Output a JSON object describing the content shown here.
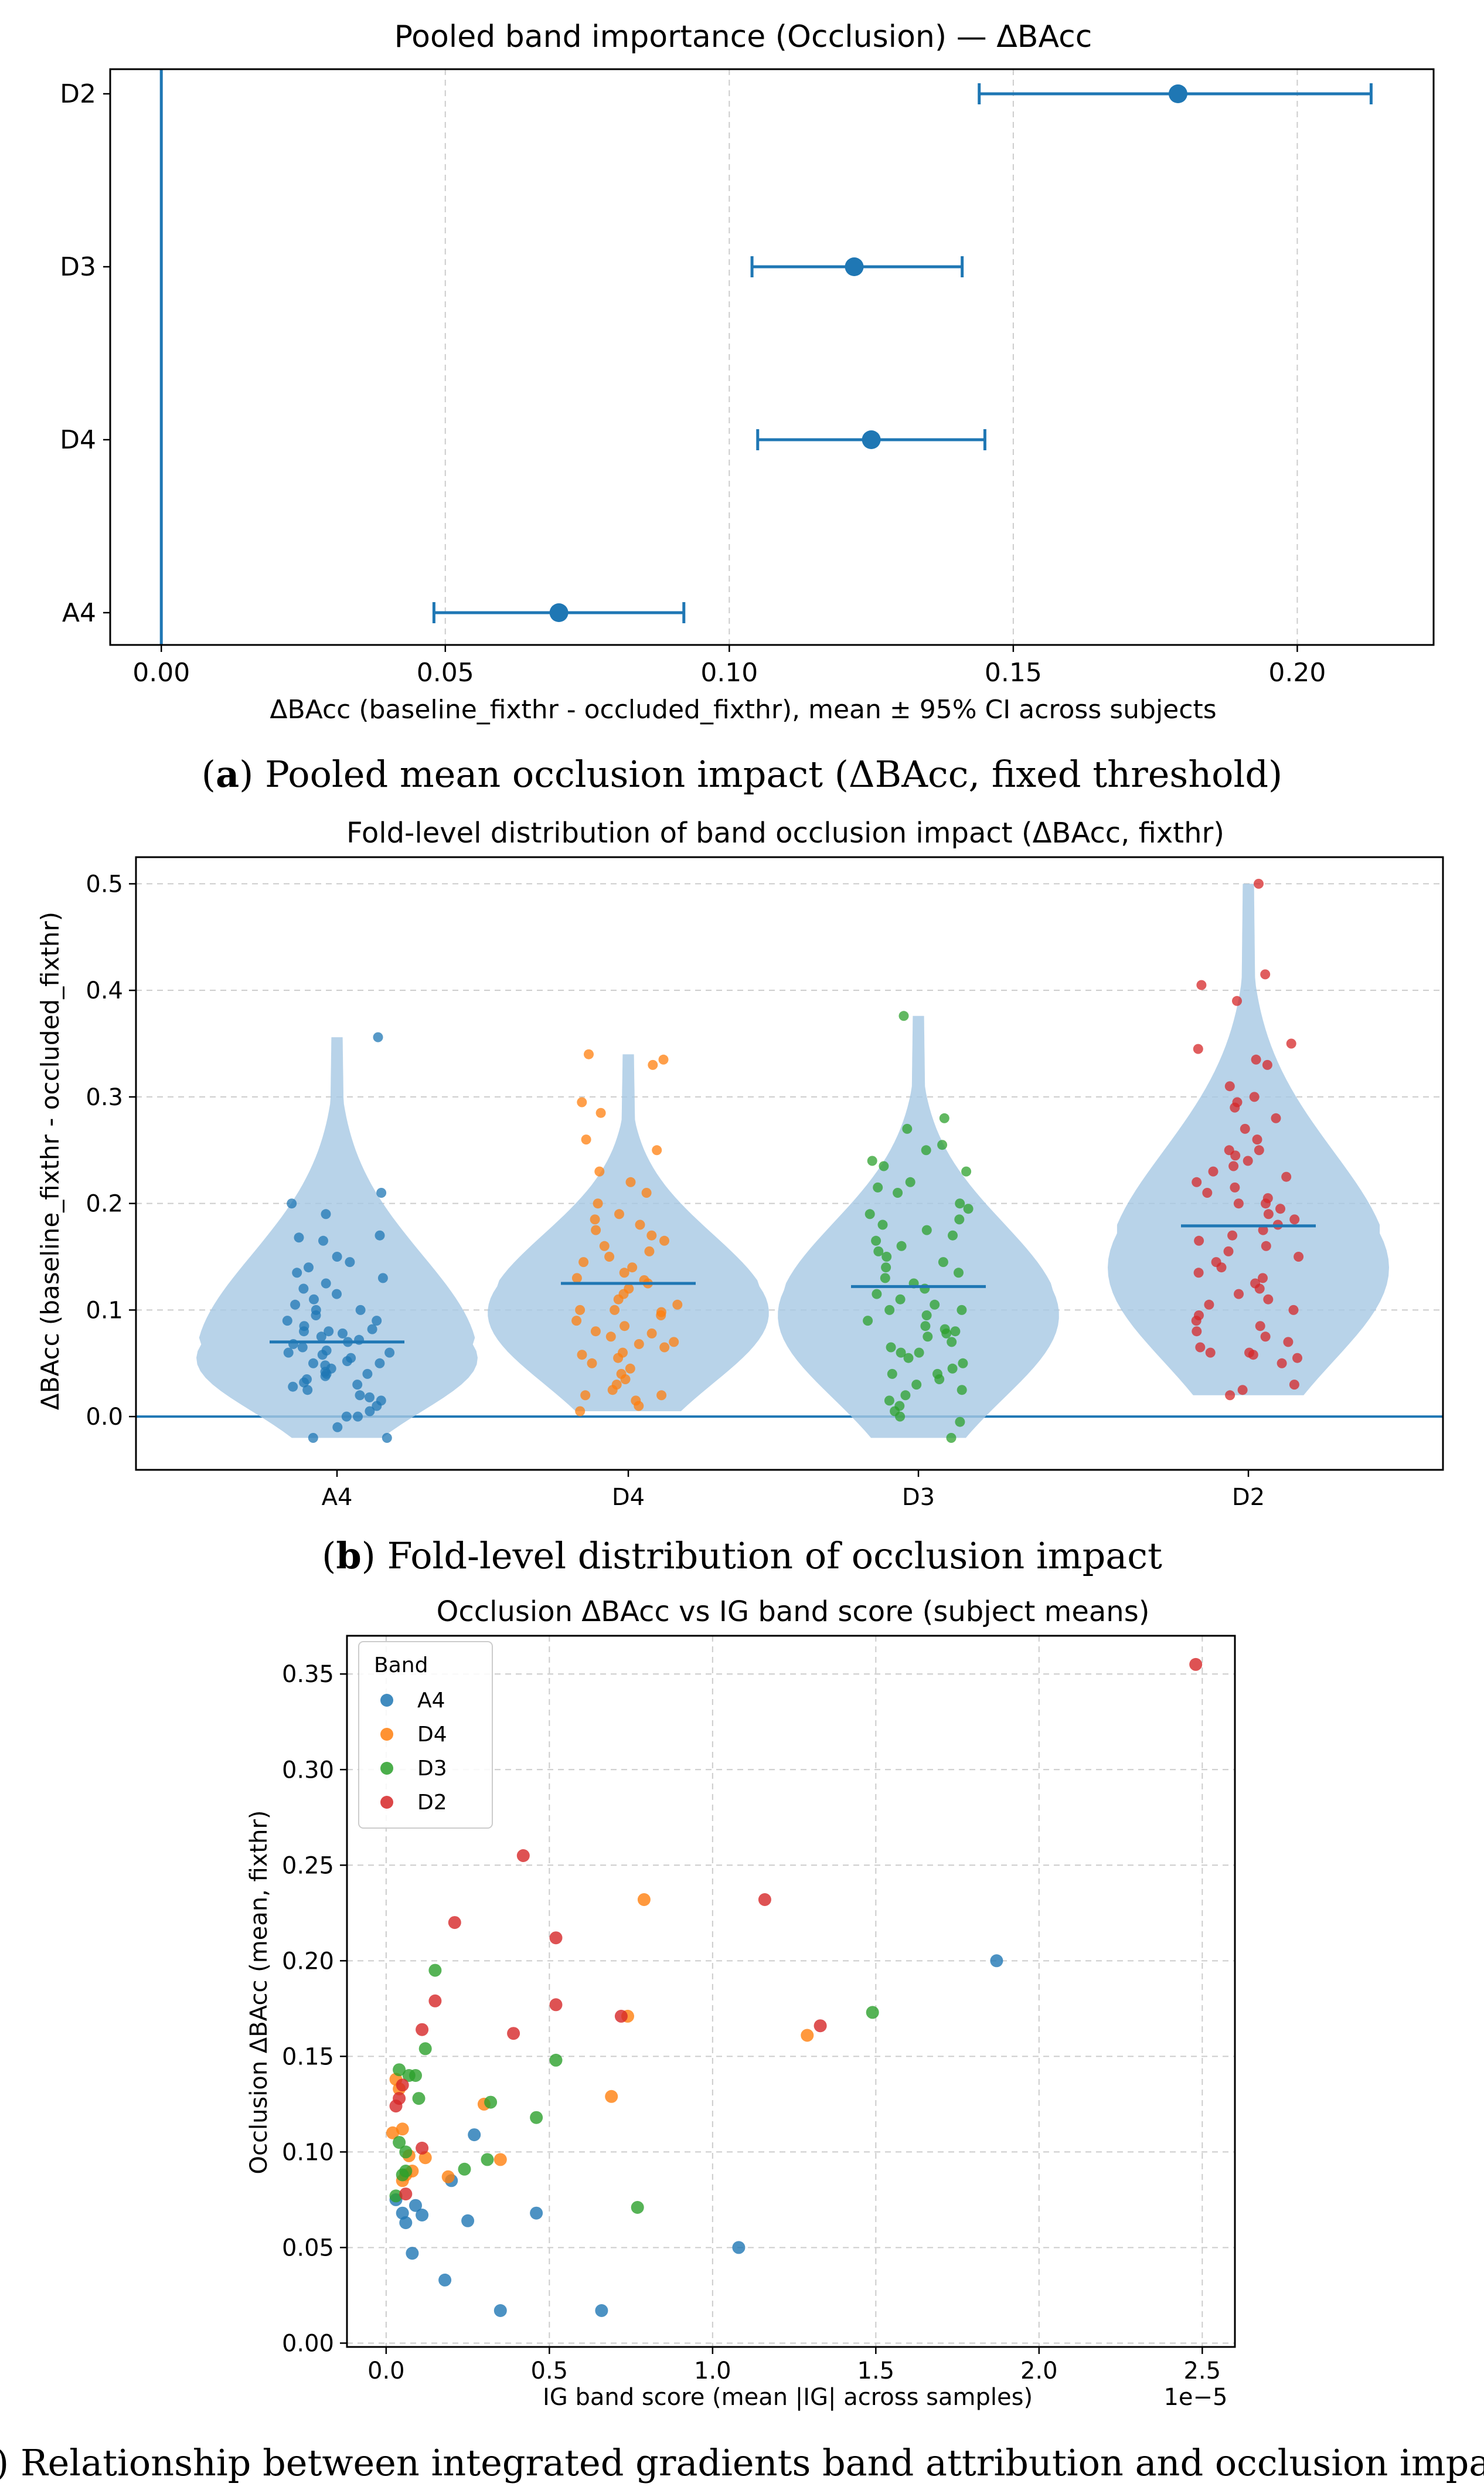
{
  "colors": {
    "A4": "#1f77b4",
    "D4": "#ff7f0e",
    "D3": "#2ca02c",
    "D2": "#d62728",
    "primary": "#1f77b4",
    "violin": "#a6c8e4",
    "grid": "#cccccc"
  },
  "chart_data": [
    {
      "type": "scatter",
      "subtype": "forest-plot",
      "title": "Pooled band importance (Occlusion) — ΔBAcc",
      "xlabel": "ΔBAcc (baseline_fixthr - occluded_fixthr), mean ± 95% CI across subjects",
      "ylabel": "",
      "xlim": [
        -0.009,
        0.224
      ],
      "xticks": [
        0.0,
        0.05,
        0.1,
        0.15,
        0.2
      ],
      "xtick_labels": [
        "0.00",
        "0.05",
        "0.10",
        "0.15",
        "0.20"
      ],
      "grid": "x-dashed",
      "reference_line": 0.0,
      "categories": [
        "D2",
        "D3",
        "D4",
        "A4"
      ],
      "means": [
        0.179,
        0.122,
        0.125,
        0.07
      ],
      "ci_low": [
        0.144,
        0.104,
        0.105,
        0.048
      ],
      "ci_high": [
        0.213,
        0.141,
        0.145,
        0.092
      ],
      "caption_label": "a",
      "caption": "Pooled mean occlusion impact (ΔBAcc, fixed threshold)"
    },
    {
      "type": "violin",
      "title": "Fold-level distribution of band occlusion impact (ΔBAcc, fixthr)",
      "xlabel": "",
      "ylabel": "ΔBAcc (baseline_fixthr - occluded_fixthr)",
      "ylim": [
        -0.05,
        0.525
      ],
      "yticks": [
        0.0,
        0.1,
        0.2,
        0.3,
        0.4,
        0.5
      ],
      "ytick_labels": [
        "0.0",
        "0.1",
        "0.2",
        "0.3",
        "0.4",
        "0.5"
      ],
      "grid": "y-dashed",
      "reference_line": 0.0,
      "categories": [
        "A4",
        "D4",
        "D3",
        "D2"
      ],
      "means": [
        0.07,
        0.125,
        0.122,
        0.179
      ],
      "ranges": [
        [
          -0.02,
          0.356
        ],
        [
          0.005,
          0.34
        ],
        [
          -0.02,
          0.376
        ],
        [
          0.02,
          0.5
        ]
      ],
      "jitter_points": {
        "A4": [
          0.356,
          0.21,
          0.2,
          0.19,
          0.17,
          0.168,
          0.165,
          0.15,
          0.145,
          0.14,
          0.135,
          0.13,
          0.125,
          0.12,
          0.115,
          0.11,
          0.105,
          0.1,
          0.1,
          0.095,
          0.09,
          0.09,
          0.085,
          0.082,
          0.08,
          0.08,
          0.078,
          0.075,
          0.072,
          0.07,
          0.068,
          0.065,
          0.062,
          0.06,
          0.06,
          0.058,
          0.055,
          0.052,
          0.05,
          0.05,
          0.048,
          0.045,
          0.042,
          0.04,
          0.04,
          0.038,
          0.035,
          0.032,
          0.03,
          0.028,
          0.025,
          0.02,
          0.018,
          0.015,
          0.01,
          0.005,
          0.0,
          0.0,
          -0.01,
          -0.02,
          -0.02
        ],
        "D4": [
          0.34,
          0.335,
          0.33,
          0.295,
          0.285,
          0.26,
          0.25,
          0.23,
          0.22,
          0.21,
          0.2,
          0.19,
          0.185,
          0.18,
          0.175,
          0.17,
          0.165,
          0.16,
          0.155,
          0.15,
          0.145,
          0.14,
          0.135,
          0.13,
          0.128,
          0.125,
          0.12,
          0.115,
          0.11,
          0.105,
          0.1,
          0.1,
          0.098,
          0.095,
          0.09,
          0.085,
          0.08,
          0.078,
          0.075,
          0.07,
          0.068,
          0.065,
          0.06,
          0.058,
          0.055,
          0.05,
          0.045,
          0.04,
          0.035,
          0.03,
          0.025,
          0.02,
          0.02,
          0.015,
          0.01,
          0.005
        ],
        "D3": [
          0.376,
          0.28,
          0.27,
          0.255,
          0.25,
          0.24,
          0.235,
          0.23,
          0.22,
          0.215,
          0.21,
          0.2,
          0.195,
          0.19,
          0.185,
          0.18,
          0.175,
          0.17,
          0.165,
          0.16,
          0.155,
          0.15,
          0.145,
          0.14,
          0.135,
          0.13,
          0.125,
          0.12,
          0.115,
          0.11,
          0.105,
          0.1,
          0.1,
          0.095,
          0.09,
          0.085,
          0.082,
          0.08,
          0.078,
          0.075,
          0.07,
          0.065,
          0.06,
          0.06,
          0.055,
          0.05,
          0.045,
          0.04,
          0.04,
          0.035,
          0.03,
          0.025,
          0.02,
          0.015,
          0.01,
          0.005,
          0.0,
          -0.005,
          -0.02
        ],
        "D2": [
          0.5,
          0.415,
          0.405,
          0.39,
          0.35,
          0.345,
          0.335,
          0.33,
          0.31,
          0.3,
          0.295,
          0.29,
          0.28,
          0.27,
          0.26,
          0.25,
          0.25,
          0.245,
          0.24,
          0.235,
          0.23,
          0.225,
          0.22,
          0.215,
          0.21,
          0.205,
          0.2,
          0.2,
          0.195,
          0.19,
          0.185,
          0.18,
          0.175,
          0.17,
          0.165,
          0.16,
          0.155,
          0.15,
          0.145,
          0.14,
          0.135,
          0.13,
          0.125,
          0.12,
          0.115,
          0.11,
          0.105,
          0.1,
          0.095,
          0.09,
          0.085,
          0.08,
          0.075,
          0.07,
          0.065,
          0.06,
          0.06,
          0.058,
          0.055,
          0.05,
          0.03,
          0.025,
          0.02
        ]
      },
      "caption_label": "b",
      "caption": "Fold-level distribution of occlusion impact"
    },
    {
      "type": "scatter",
      "title": "Occlusion ΔBAcc vs IG band score (subject means)",
      "xlabel": "IG band score (mean |IG| across samples)",
      "ylabel": "Occlusion ΔBAcc (mean, fixthr)",
      "x_scale_label": "1e−5",
      "xlim": [
        -0.12,
        2.6
      ],
      "ylim": [
        -0.002,
        0.37
      ],
      "xticks": [
        0.0,
        0.5,
        1.0,
        1.5,
        2.0,
        2.5
      ],
      "xtick_labels": [
        "0.0",
        "0.5",
        "1.0",
        "1.5",
        "2.0",
        "2.5"
      ],
      "yticks": [
        0.0,
        0.05,
        0.1,
        0.15,
        0.2,
        0.25,
        0.3,
        0.35
      ],
      "ytick_labels": [
        "0.00",
        "0.05",
        "0.10",
        "0.15",
        "0.20",
        "0.25",
        "0.30",
        "0.35"
      ],
      "grid": "both-dashed",
      "legend_title": "Band",
      "legend_position": "top-left",
      "series": [
        {
          "name": "A4",
          "points": [
            [
              1.87,
              0.2
            ],
            [
              1.08,
              0.05
            ],
            [
              0.66,
              0.017
            ],
            [
              0.35,
              0.017
            ],
            [
              0.46,
              0.068
            ],
            [
              0.27,
              0.109
            ],
            [
              0.25,
              0.064
            ],
            [
              0.2,
              0.085
            ],
            [
              0.18,
              0.033
            ],
            [
              0.11,
              0.067
            ],
            [
              0.08,
              0.047
            ],
            [
              0.09,
              0.072
            ],
            [
              0.06,
              0.063
            ],
            [
              0.05,
              0.068
            ],
            [
              0.03,
              0.075
            ]
          ]
        },
        {
          "name": "D4",
          "points": [
            [
              0.79,
              0.232
            ],
            [
              0.74,
              0.171
            ],
            [
              1.29,
              0.161
            ],
            [
              0.69,
              0.129
            ],
            [
              0.3,
              0.125
            ],
            [
              0.35,
              0.096
            ],
            [
              0.19,
              0.087
            ],
            [
              0.12,
              0.097
            ],
            [
              0.08,
              0.09
            ],
            [
              0.05,
              0.112
            ],
            [
              0.04,
              0.133
            ],
            [
              0.03,
              0.138
            ],
            [
              0.02,
              0.11
            ],
            [
              0.07,
              0.098
            ],
            [
              0.05,
              0.085
            ],
            [
              0.06,
              0.088
            ]
          ]
        },
        {
          "name": "D3",
          "points": [
            [
              1.49,
              0.173
            ],
            [
              0.52,
              0.148
            ],
            [
              0.77,
              0.071
            ],
            [
              0.46,
              0.118
            ],
            [
              0.32,
              0.126
            ],
            [
              0.31,
              0.096
            ],
            [
              0.24,
              0.091
            ],
            [
              0.15,
              0.195
            ],
            [
              0.12,
              0.154
            ],
            [
              0.09,
              0.14
            ],
            [
              0.07,
              0.14
            ],
            [
              0.1,
              0.128
            ],
            [
              0.04,
              0.143
            ],
            [
              0.06,
              0.1
            ],
            [
              0.04,
              0.105
            ],
            [
              0.03,
              0.077
            ],
            [
              0.06,
              0.09
            ],
            [
              0.05,
              0.088
            ]
          ]
        },
        {
          "name": "D2",
          "points": [
            [
              2.48,
              0.355
            ],
            [
              0.42,
              0.255
            ],
            [
              1.16,
              0.232
            ],
            [
              0.21,
              0.22
            ],
            [
              0.52,
              0.212
            ],
            [
              0.15,
              0.179
            ],
            [
              0.52,
              0.177
            ],
            [
              0.72,
              0.171
            ],
            [
              1.33,
              0.166
            ],
            [
              0.11,
              0.164
            ],
            [
              0.39,
              0.162
            ],
            [
              0.05,
              0.135
            ],
            [
              0.04,
              0.128
            ],
            [
              0.03,
              0.124
            ],
            [
              0.11,
              0.102
            ],
            [
              0.06,
              0.078
            ]
          ]
        }
      ],
      "caption_label": "c",
      "caption": "Relationship between integrated gradients band attribution and occlusion impact"
    }
  ]
}
